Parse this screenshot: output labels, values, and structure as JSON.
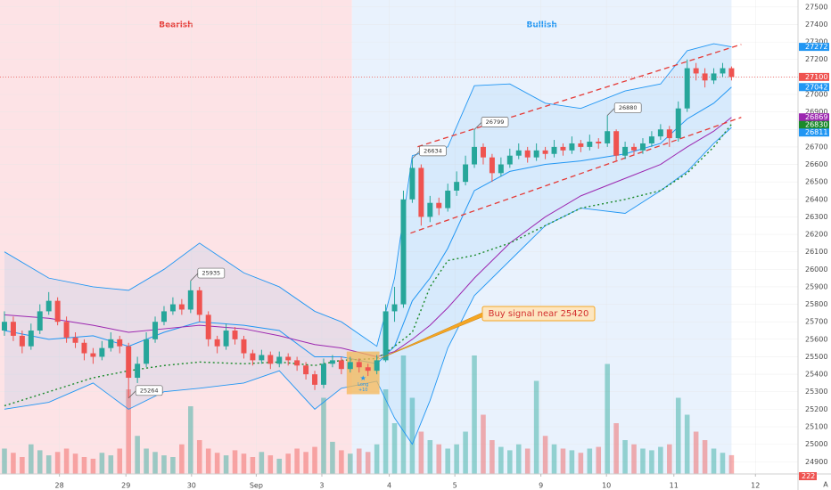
{
  "chart_data": {
    "type": "candlestick",
    "xlim": [
      -0.5,
      89.5
    ],
    "ylim": [
      24830,
      27540
    ],
    "yticks": [
      24900,
      25000,
      25100,
      25200,
      25300,
      25400,
      25500,
      25600,
      25700,
      25800,
      25900,
      26000,
      26100,
      26200,
      26300,
      26400,
      26500,
      26600,
      26700,
      26800,
      26900,
      27000,
      27100,
      27200,
      27300,
      27400,
      27500
    ],
    "xticks": [
      {
        "value": 6.2,
        "label": "28"
      },
      {
        "value": 13.7,
        "label": "29"
      },
      {
        "value": 21.1,
        "label": "30"
      },
      {
        "value": 28.4,
        "label": "Sep"
      },
      {
        "value": 35.8,
        "label": "3"
      },
      {
        "value": 43.4,
        "label": "4"
      },
      {
        "value": 50.8,
        "label": "5"
      },
      {
        "value": 60.5,
        "label": "9"
      },
      {
        "value": 67.9,
        "label": "10"
      },
      {
        "value": 75.5,
        "label": "11"
      },
      {
        "value": 84.7,
        "label": "12"
      }
    ],
    "grid": true,
    "up_color": "#26a69a",
    "down_color": "#ef5350",
    "regions": [
      {
        "label": "Bearish",
        "x": [
          -0.5,
          39.2
        ],
        "color": "#fde3e6",
        "label_color": "#e53935"
      },
      {
        "label": "Bullish",
        "x": [
          39.2,
          82.0
        ],
        "color": "#e9f2fd",
        "label_color": "#2196f3"
      }
    ],
    "ohlc": [
      [
        25650,
        25760,
        25620,
        25700
      ],
      [
        25700,
        25730,
        25590,
        25620
      ],
      [
        25620,
        25650,
        25520,
        25560
      ],
      [
        25560,
        25690,
        25540,
        25650
      ],
      [
        25650,
        25800,
        25630,
        25760
      ],
      [
        25760,
        25870,
        25740,
        25820
      ],
      [
        25820,
        25840,
        25680,
        25700
      ],
      [
        25700,
        25730,
        25580,
        25610
      ],
      [
        25610,
        25640,
        25550,
        25580
      ],
      [
        25580,
        25600,
        25480,
        25520
      ],
      [
        25520,
        25550,
        25460,
        25500
      ],
      [
        25500,
        25590,
        25480,
        25550
      ],
      [
        25550,
        25640,
        25530,
        25600
      ],
      [
        25600,
        25620,
        25520,
        25560
      ],
      [
        25560,
        25580,
        25264,
        25380
      ],
      [
        25380,
        25500,
        25350,
        25460
      ],
      [
        25460,
        25640,
        25440,
        25600
      ],
      [
        25600,
        25730,
        25580,
        25700
      ],
      [
        25700,
        25790,
        25680,
        25760
      ],
      [
        25760,
        25840,
        25740,
        25800
      ],
      [
        25800,
        25830,
        25740,
        25770
      ],
      [
        25770,
        25935,
        25750,
        25880
      ],
      [
        25880,
        25900,
        25700,
        25740
      ],
      [
        25740,
        25760,
        25560,
        25600
      ],
      [
        25600,
        25620,
        25520,
        25560
      ],
      [
        25560,
        25690,
        25540,
        25650
      ],
      [
        25650,
        25670,
        25570,
        25600
      ],
      [
        25600,
        25620,
        25490,
        25520
      ],
      [
        25520,
        25540,
        25450,
        25480
      ],
      [
        25480,
        25540,
        25460,
        25510
      ],
      [
        25510,
        25530,
        25430,
        25460
      ],
      [
        25460,
        25530,
        25440,
        25500
      ],
      [
        25500,
        25520,
        25450,
        25480
      ],
      [
        25480,
        25500,
        25420,
        25450
      ],
      [
        25450,
        25470,
        25370,
        25400
      ],
      [
        25400,
        25420,
        25310,
        25340
      ],
      [
        25340,
        25490,
        25320,
        25460
      ],
      [
        25460,
        25510,
        25440,
        25480
      ],
      [
        25480,
        25500,
        25400,
        25430
      ],
      [
        25430,
        25500,
        25410,
        25470
      ],
      [
        25470,
        25490,
        25410,
        25440
      ],
      [
        25440,
        25460,
        25390,
        25420
      ],
      [
        25420,
        25510,
        25400,
        25480
      ],
      [
        25480,
        25800,
        25470,
        25760
      ],
      [
        25760,
        25900,
        25700,
        25800
      ],
      [
        25800,
        26450,
        25780,
        26400
      ],
      [
        26400,
        26634,
        26380,
        26580
      ],
      [
        26580,
        26600,
        26250,
        26300
      ],
      [
        26300,
        26420,
        26270,
        26380
      ],
      [
        26380,
        26410,
        26310,
        26350
      ],
      [
        26350,
        26490,
        26330,
        26450
      ],
      [
        26450,
        26560,
        26420,
        26500
      ],
      [
        26500,
        26650,
        26480,
        26600
      ],
      [
        26600,
        26799,
        26580,
        26700
      ],
      [
        26700,
        26720,
        26600,
        26640
      ],
      [
        26640,
        26660,
        26500,
        26550
      ],
      [
        26550,
        26640,
        26530,
        26600
      ],
      [
        26600,
        26690,
        26580,
        26650
      ],
      [
        26650,
        26720,
        26630,
        26680
      ],
      [
        26680,
        26700,
        26610,
        26640
      ],
      [
        26640,
        26720,
        26620,
        26680
      ],
      [
        26680,
        26700,
        26630,
        26660
      ],
      [
        26660,
        26740,
        26640,
        26700
      ],
      [
        26700,
        26720,
        26650,
        26680
      ],
      [
        26680,
        26760,
        26660,
        26720
      ],
      [
        26720,
        26740,
        26670,
        26700
      ],
      [
        26700,
        26770,
        26680,
        26730
      ],
      [
        26730,
        26750,
        26690,
        26720
      ],
      [
        26720,
        26880,
        26700,
        26790
      ],
      [
        26790,
        26800,
        26620,
        26650
      ],
      [
        26650,
        26730,
        26630,
        26700
      ],
      [
        26700,
        26720,
        26650,
        26680
      ],
      [
        26680,
        26750,
        26660,
        26720
      ],
      [
        26720,
        26790,
        26700,
        26760
      ],
      [
        26760,
        26830,
        26740,
        26800
      ],
      [
        26800,
        26820,
        26700,
        26750
      ],
      [
        26750,
        26960,
        26730,
        26920
      ],
      [
        26920,
        27200,
        26900,
        27150
      ],
      [
        27150,
        27180,
        27080,
        27120
      ],
      [
        27120,
        27150,
        27040,
        27080
      ],
      [
        27080,
        27150,
        27060,
        27120
      ],
      [
        27120,
        27180,
        27100,
        27150
      ],
      [
        27150,
        27160,
        27080,
        27100
      ]
    ],
    "volume": {
      "vlim": [
        0,
        1600
      ],
      "values": [
        300,
        250,
        200,
        350,
        280,
        220,
        260,
        300,
        240,
        200,
        180,
        250,
        220,
        300,
        1000,
        450,
        300,
        260,
        220,
        200,
        350,
        800,
        400,
        300,
        250,
        220,
        280,
        240,
        200,
        260,
        220,
        180,
        240,
        300,
        260,
        320,
        900,
        380,
        280,
        240,
        300,
        260,
        350,
        1000,
        600,
        1400,
        900,
        500,
        400,
        350,
        300,
        350,
        500,
        1400,
        700,
        400,
        320,
        280,
        350,
        300,
        1100,
        450,
        350,
        300,
        280,
        250,
        300,
        320,
        1300,
        600,
        400,
        350,
        300,
        280,
        320,
        350,
        900,
        700,
        500,
        400,
        300,
        250,
        222
      ]
    },
    "overlays": {
      "x": [
        0,
        5,
        10,
        14,
        18,
        22,
        27,
        31,
        35,
        38,
        42,
        44,
        46,
        48,
        50,
        53,
        57,
        61,
        65,
        70,
        74,
        77,
        80,
        82
      ],
      "band": {
        "color": "#2196f3",
        "fill": "rgba(33,150,243,0.09)",
        "upper": [
          26100,
          25950,
          25900,
          25880,
          26000,
          26150,
          25980,
          25900,
          25760,
          25700,
          25560,
          25950,
          26650,
          26680,
          26700,
          27050,
          27060,
          26950,
          26920,
          27020,
          27060,
          27250,
          27290,
          27272
        ],
        "lower": [
          25200,
          25240,
          25350,
          25200,
          25300,
          25320,
          25350,
          25420,
          25200,
          25320,
          25360,
          25150,
          25000,
          25250,
          25550,
          25850,
          26050,
          26250,
          26350,
          26320,
          26450,
          26560,
          26720,
          26811
        ]
      },
      "lines": [
        {
          "color": "#2196f3",
          "dash": "none",
          "values": [
            25650,
            25600,
            25620,
            25560,
            25640,
            25700,
            25680,
            25650,
            25500,
            25500,
            25460,
            25560,
            25820,
            25950,
            26120,
            26450,
            26560,
            26600,
            26620,
            26660,
            26720,
            26860,
            26950,
            27042
          ]
        },
        {
          "color": "#9c27b0",
          "dash": "none",
          "values": [
            25740,
            25720,
            25680,
            25640,
            25660,
            25680,
            25660,
            25620,
            25570,
            25550,
            25500,
            25530,
            25600,
            25680,
            25780,
            25950,
            26150,
            26300,
            26420,
            26520,
            26600,
            26700,
            26790,
            26869
          ]
        },
        {
          "color": "#1b8a2b",
          "dash": "2 3",
          "values": [
            25220,
            25300,
            25380,
            25420,
            25450,
            25470,
            25460,
            25470,
            25450,
            25480,
            25490,
            25560,
            25640,
            25900,
            26050,
            26080,
            26150,
            26250,
            26350,
            26400,
            26450,
            26550,
            26700,
            26830
          ]
        }
      ]
    },
    "channel": {
      "color": "#e53935",
      "lines": [
        {
          "x": [
            46.6,
            83.1
          ],
          "values": [
            26701,
            27286
          ]
        },
        {
          "x": [
            45.8,
            83.1
          ],
          "values": [
            26207,
            26869
          ]
        }
      ]
    },
    "callouts": [
      {
        "x": 14,
        "value": 25264
      },
      {
        "x": 21,
        "value": 25935
      },
      {
        "x": 46,
        "value": 26634
      },
      {
        "x": 53,
        "value": 26799
      },
      {
        "x": 68,
        "value": 26880
      }
    ],
    "entry_zone": {
      "x": [
        38.6,
        42.3
      ],
      "y": [
        25286,
        25530
      ],
      "color": "#f6b756",
      "label": "Long",
      "qty": "+10",
      "label_color": "#2196f3"
    },
    "signal": {
      "text": "Buy signal near 25420",
      "color": "#f5a623",
      "text_color": "#d32f2f"
    },
    "price_tags": [
      {
        "value": 27272,
        "color": "#2196f3"
      },
      {
        "value": 27100,
        "color": "#ef5350",
        "dashed": true
      },
      {
        "value": 27042,
        "color": "#2196f3"
      },
      {
        "value": 26869,
        "color": "#9c27b0"
      },
      {
        "value": 26830,
        "color": "#1b8a2b"
      },
      {
        "value": 26811,
        "color": "#2196f3"
      }
    ],
    "autoscale_label": "A"
  }
}
